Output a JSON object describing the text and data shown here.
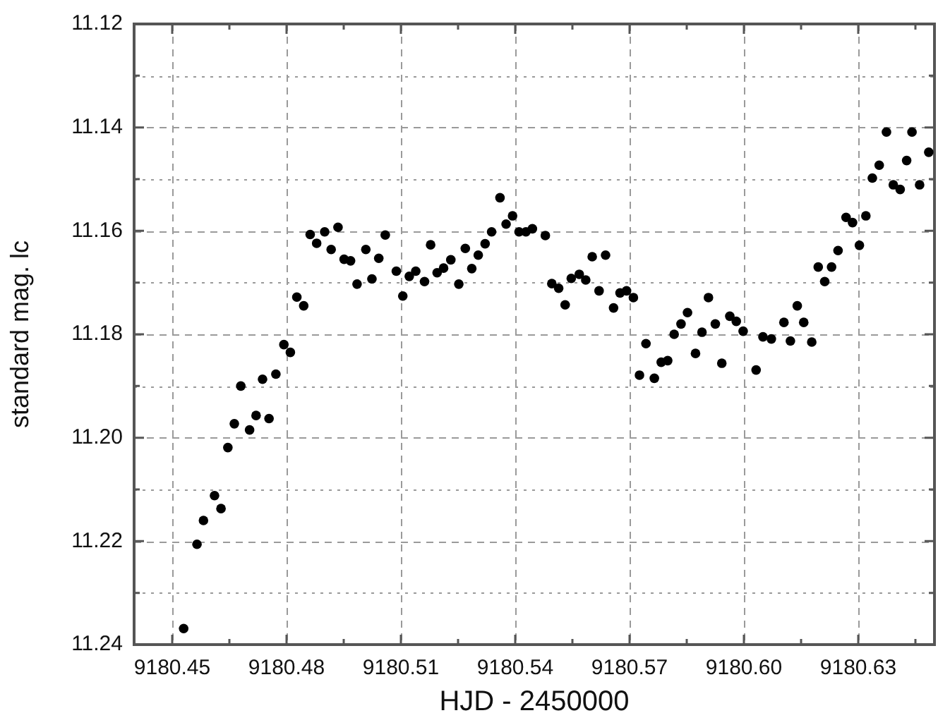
{
  "chart_data": {
    "type": "scatter",
    "xlabel": "HJD - 2450000",
    "ylabel": "standard mag. lc",
    "xlim": [
      9180.44,
      9180.65
    ],
    "xticks": [
      9180.45,
      {
        "value": 9180.465,
        "label": null
      },
      9180.48,
      {
        "value": 9180.495,
        "label": null
      },
      9180.51,
      {
        "value": 9180.525,
        "label": null
      },
      9180.54,
      {
        "value": 9180.555,
        "label": null
      },
      9180.57,
      {
        "value": 9180.585,
        "label": null
      },
      {
        "value": 9180.6,
        "label": "9180.60"
      },
      {
        "value": 9180.615,
        "label": null
      },
      9180.63,
      {
        "value": 9180.645,
        "label": null
      }
    ],
    "ylim": [
      11.24,
      11.12
    ],
    "yticks": [
      11.12,
      {
        "value": 11.13,
        "label": null
      },
      11.14,
      {
        "value": 11.15,
        "label": null
      },
      11.16,
      {
        "value": 11.17,
        "label": null
      },
      11.18,
      {
        "value": 11.19,
        "label": null
      },
      {
        "value": 11.2,
        "label": "11.20"
      },
      {
        "value": 11.21,
        "label": null
      },
      11.22,
      {
        "value": 11.23,
        "label": null
      },
      11.24
    ],
    "grid": true,
    "marker": "circle",
    "legend": false,
    "series": [
      {
        "color": "#000000",
        "x": [
          9180.453,
          9180.4565,
          9180.4582,
          9180.4611,
          9180.4628,
          9180.4646,
          9180.4663,
          9180.468,
          9180.4703,
          9180.472,
          9180.4737,
          9180.4754,
          9180.4772,
          9180.4793,
          9180.481,
          9180.4827,
          9180.4845,
          9180.4862,
          9180.4879,
          9180.49,
          9180.4917,
          9180.4935,
          9180.4951,
          9180.4968,
          9180.4985,
          9180.5008,
          9180.5024,
          9180.5042,
          9180.5059,
          9180.5088,
          9180.5105,
          9180.5122,
          9180.5139,
          9180.5162,
          9180.5178,
          9180.5195,
          9180.5212,
          9180.5231,
          9180.5252,
          9180.5269,
          9180.5286,
          9180.5303,
          9180.5321,
          9180.5338,
          9180.536,
          9180.5376,
          9180.5393,
          9180.541,
          9180.5428,
          9180.5445,
          9180.5479,
          9180.5496,
          9180.5514,
          9180.5531,
          9180.5547,
          9180.5568,
          9180.5585,
          9180.5602,
          9180.562,
          9180.5637,
          9180.5658,
          9180.5675,
          9180.5692,
          9180.571,
          9180.5726,
          9180.5743,
          9180.5765,
          9180.5783,
          9180.58,
          9180.5817,
          9180.5835,
          9180.5852,
          9180.5873,
          9180.589,
          9180.5907,
          9180.5925,
          9180.5942,
          9180.5963,
          9180.598,
          9180.5998,
          9180.6032,
          9180.605,
          9180.6072,
          9180.6105,
          9180.6122,
          9180.614,
          9180.6157,
          9180.6178,
          9180.6195,
          9180.6212,
          9180.623,
          9180.6247,
          9180.6268,
          9180.6285,
          9180.6303,
          9180.632,
          9180.6337,
          9180.6355,
          9180.6374,
          9180.6392,
          9180.641,
          9180.6427,
          9180.6441,
          9180.6461,
          9180.6485
        ],
        "values": [
          11.2369,
          11.2206,
          11.216,
          11.2112,
          11.2137,
          11.2019,
          11.1973,
          11.19,
          11.1985,
          11.1957,
          11.1887,
          11.1963,
          11.1877,
          11.182,
          11.1835,
          11.1728,
          11.1745,
          11.1607,
          11.1624,
          11.1602,
          11.1636,
          11.1593,
          11.1655,
          11.1658,
          11.1703,
          11.1636,
          11.1693,
          11.1653,
          11.1608,
          11.1678,
          11.1726,
          11.1688,
          11.1678,
          11.1698,
          11.1627,
          11.1681,
          11.1672,
          11.1656,
          11.1703,
          11.1634,
          11.1673,
          11.1647,
          11.1625,
          11.1602,
          11.1536,
          11.1587,
          11.1571,
          11.1602,
          11.1602,
          11.1596,
          11.1609,
          11.1702,
          11.1711,
          11.1743,
          11.1692,
          11.1684,
          11.1695,
          11.165,
          11.1716,
          11.1647,
          11.1749,
          11.172,
          11.1716,
          11.1729,
          11.1879,
          11.1818,
          11.1885,
          11.1854,
          11.1851,
          11.18,
          11.178,
          11.1758,
          11.1837,
          11.1796,
          11.1729,
          11.178,
          11.1856,
          11.1765,
          11.1775,
          11.1794,
          11.1869,
          11.1805,
          11.1809,
          11.1777,
          11.1813,
          11.1745,
          11.1777,
          11.1815,
          11.167,
          11.1698,
          11.167,
          11.1638,
          11.1574,
          11.1584,
          11.1628,
          11.1571,
          11.1498,
          11.1473,
          11.1409,
          11.1511,
          11.152,
          11.1464,
          11.1409,
          11.1511,
          11.1448
        ]
      }
    ]
  }
}
